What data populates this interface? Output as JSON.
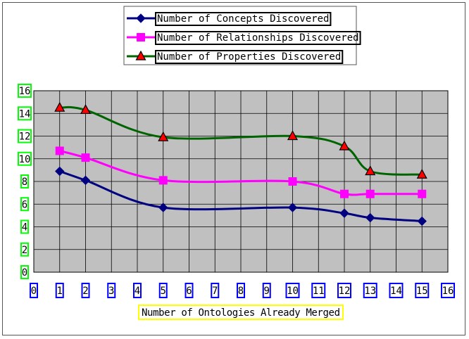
{
  "chart_data": {
    "type": "line",
    "x": [
      1,
      2,
      5,
      10,
      12,
      13,
      15
    ],
    "series": [
      {
        "name": "Number of Concepts Discovered",
        "color": "#000080",
        "marker": "diamond",
        "values": [
          8.9,
          8.1,
          5.7,
          5.7,
          5.2,
          4.8,
          4.5
        ]
      },
      {
        "name": "Number of Relationships Discovered",
        "color": "#ff00ff",
        "marker": "square",
        "values": [
          10.7,
          10.1,
          8.1,
          8.0,
          6.9,
          6.9,
          6.9
        ]
      },
      {
        "name": "Number of Properties Discovered",
        "color": "#006400",
        "marker": "triangle",
        "values": [
          14.5,
          14.3,
          11.9,
          12.0,
          11.1,
          8.9,
          8.6
        ]
      }
    ],
    "xlabel": "Number of Ontologies Already Merged",
    "ylabel": "",
    "xlim": [
      0,
      16
    ],
    "ylim": [
      0,
      16
    ],
    "x_ticks": [
      "0",
      "1",
      "2",
      "3",
      "4",
      "5",
      "6",
      "7",
      "8",
      "9",
      "10",
      "11",
      "12",
      "13",
      "14",
      "15",
      "16"
    ],
    "y_ticks": [
      "0",
      "2",
      "4",
      "6",
      "8",
      "10",
      "12",
      "14",
      "16"
    ],
    "grid": true,
    "legend_position": "top-center",
    "plot_background": "#c0c0c0",
    "x_tick_frame_color": "#0000ff",
    "y_tick_frame_color": "#00ff00",
    "xlabel_frame_color": "#ffff00"
  }
}
